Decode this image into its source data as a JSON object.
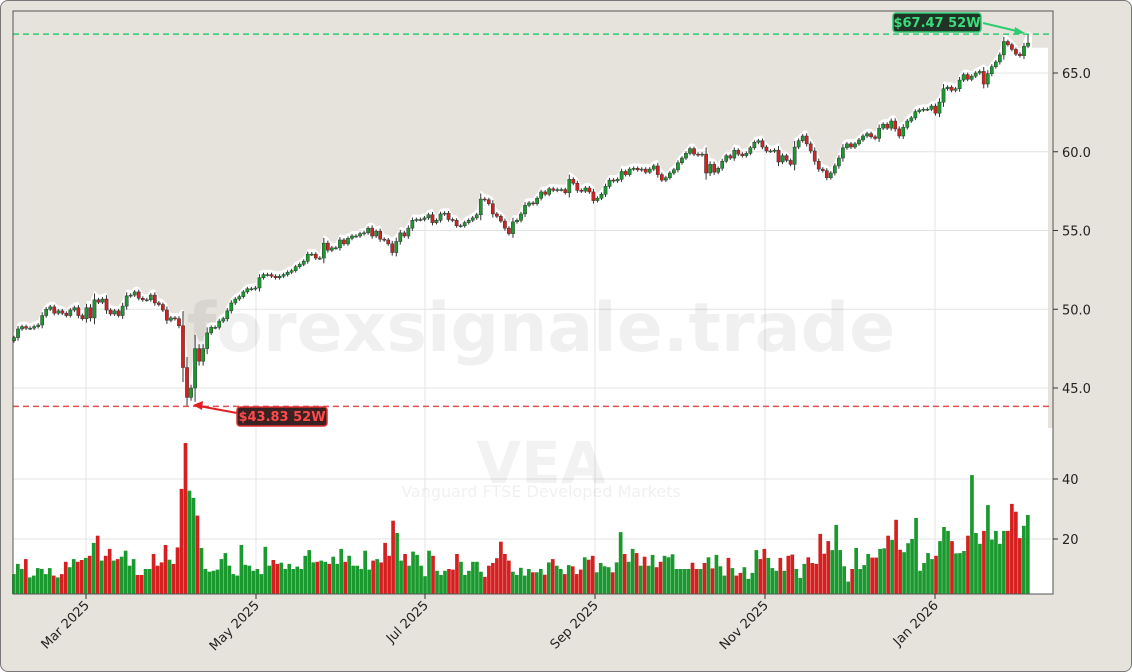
{
  "chart_data": {
    "type": "candlestick",
    "ticker": "VEA",
    "subtitle": "Vanguard FTSE Developed Markets",
    "watermark": "forexsignale.trade",
    "x_tick_labels": [
      "Mar 2025",
      "May 2025",
      "Jul 2025",
      "Sep 2025",
      "Nov 2025",
      "Jan 2026"
    ],
    "price_ticks": [
      45.0,
      50.0,
      55.0,
      60.0,
      65.0
    ],
    "price_ylim": [
      41.6,
      69.6
    ],
    "volume_ticks": [
      20,
      40
    ],
    "volume_unit": "M",
    "high_52w": {
      "value": 67.47,
      "label": "$67.47 52W"
    },
    "low_52w": {
      "value": 43.83,
      "label": "$43.83 52W"
    },
    "grid": true,
    "colors": {
      "up": "#1a9a2e",
      "down": "#d62020",
      "high_line": "#2ecc71",
      "low_line": "#e05050",
      "background": "#e6e3dd",
      "panel": "#ffffff"
    },
    "closes": [
      48.2,
      48.75,
      48.9,
      48.8,
      48.8,
      48.9,
      49.0,
      49.6,
      50.0,
      50.15,
      49.75,
      49.9,
      49.75,
      49.6,
      49.95,
      50.1,
      49.6,
      49.4,
      50.1,
      49.45,
      50.6,
      50.45,
      50.65,
      49.95,
      49.7,
      49.9,
      49.6,
      50.2,
      50.85,
      50.9,
      51.1,
      50.7,
      50.6,
      50.6,
      50.9,
      50.4,
      50.3,
      49.95,
      49.3,
      49.45,
      49.4,
      48.95,
      46.3,
      44.4,
      45.0,
      47.5,
      46.7,
      47.5,
      48.5,
      48.85,
      48.85,
      49.25,
      49.4,
      49.9,
      50.4,
      50.65,
      50.8,
      51.1,
      51.3,
      51.3,
      51.35,
      52.0,
      52.2,
      52.2,
      52.1,
      52.0,
      52.1,
      52.2,
      52.35,
      52.45,
      52.7,
      52.85,
      53.05,
      53.5,
      53.5,
      53.25,
      53.25,
      54.2,
      53.75,
      53.9,
      53.9,
      54.4,
      54.15,
      54.5,
      54.65,
      54.65,
      54.8,
      54.85,
      55.15,
      54.65,
      54.95,
      54.45,
      54.4,
      54.15,
      53.6,
      54.3,
      54.85,
      54.65,
      55.15,
      55.65,
      55.7,
      55.7,
      55.8,
      56.0,
      55.5,
      55.65,
      56.05,
      56.1,
      55.7,
      55.65,
      55.3,
      55.3,
      55.5,
      55.65,
      55.8,
      56.0,
      57.0,
      56.95,
      56.7,
      56.05,
      55.9,
      55.6,
      55.15,
      54.8,
      55.55,
      55.65,
      56.05,
      56.6,
      56.75,
      56.7,
      57.05,
      57.45,
      57.3,
      57.65,
      57.55,
      57.6,
      57.6,
      57.4,
      58.25,
      58.0,
      57.55,
      57.5,
      57.7,
      57.45,
      56.9,
      57.05,
      57.3,
      57.8,
      58.2,
      58.15,
      58.25,
      58.75,
      58.55,
      58.9,
      58.95,
      58.85,
      58.9,
      58.7,
      58.9,
      59.1,
      58.55,
      58.2,
      58.35,
      58.65,
      58.85,
      59.3,
      59.6,
      59.9,
      60.2,
      59.85,
      59.8,
      59.85,
      58.65,
      59.2,
      58.7,
      58.95,
      59.4,
      59.75,
      59.6,
      60.1,
      59.85,
      59.75,
      59.9,
      60.25,
      60.6,
      60.7,
      60.3,
      60.05,
      60.05,
      60.1,
      59.35,
      59.75,
      59.45,
      59.2,
      60.3,
      60.7,
      61.0,
      60.5,
      60.05,
      59.4,
      58.9,
      58.8,
      58.35,
      58.65,
      59.1,
      59.6,
      60.25,
      60.5,
      60.3,
      60.5,
      60.75,
      61.0,
      61.15,
      60.95,
      60.85,
      61.5,
      61.75,
      61.5,
      61.95,
      61.45,
      61.0,
      61.55,
      61.95,
      62.15,
      62.55,
      62.65,
      62.7,
      62.7,
      62.9,
      62.45,
      63.15,
      64.0,
      64.1,
      63.9,
      64.0,
      64.55,
      64.9,
      64.6,
      64.8,
      65.0,
      65.1,
      64.3,
      64.95,
      65.4,
      65.7,
      66.15,
      67.0,
      66.8,
      66.5,
      66.2,
      66.1,
      66.7,
      66.9
    ],
    "volumes": [
      8.3,
      11.7,
      10,
      13.3,
      7.2,
      7.8,
      10.3,
      10,
      8.3,
      10.3,
      7.8,
      7.2,
      8.3,
      12.4,
      10.6,
      13.3,
      12.4,
      13,
      13.7,
      14.4,
      18.7,
      21.1,
      12.8,
      14.4,
      16.7,
      12.8,
      13.3,
      14.1,
      16.1,
      11.1,
      13.3,
      8,
      8,
      10,
      10,
      15,
      11.1,
      12.2,
      18,
      13.1,
      11.7,
      17.2,
      36.7,
      52,
      36.1,
      33.7,
      27.8,
      17,
      10,
      9.1,
      9.4,
      9.8,
      13.3,
      15.3,
      11.1,
      8.3,
      7.8,
      18,
      11.4,
      11.1,
      9.4,
      10,
      8.3,
      17.4,
      11.1,
      13,
      11.7,
      12.1,
      10,
      11.7,
      10,
      10.8,
      10,
      14.4,
      16.3,
      12.2,
      12.4,
      12.8,
      12.4,
      11.7,
      14.1,
      11.7,
      16.7,
      12.4,
      14.4,
      11.1,
      11.1,
      10,
      16.1,
      9.8,
      12.8,
      13.3,
      12.2,
      18.7,
      14.4,
      26.1,
      22,
      12.8,
      15,
      11.1,
      15.8,
      14.7,
      11.1,
      7.6,
      16.1,
      14.4,
      9.4,
      8,
      9.4,
      10,
      9.8,
      15,
      12.4,
      8,
      9.4,
      12.4,
      12.4,
      9.1,
      7.4,
      11.1,
      12,
      13.6,
      19.1,
      15,
      12.8,
      9.1,
      8,
      10.4,
      7.8,
      10,
      8.9,
      8.9,
      10,
      8.1,
      12.2,
      13.3,
      11.1,
      10,
      8.3,
      11.3,
      10.9,
      8.3,
      9.8,
      13.9,
      13.1,
      14.4,
      8.9,
      12,
      10.9,
      10.6,
      8.9,
      12.2,
      22.3,
      15,
      12.4,
      16.7,
      15.3,
      11.1,
      14.1,
      11.1,
      14.7,
      10.6,
      12.4,
      14.4,
      13.9,
      14.9,
      10,
      10,
      10,
      10,
      12.1,
      10,
      10,
      12,
      13.9,
      10.2,
      14.7,
      10.9,
      7.8,
      13.7,
      10.3,
      7.8,
      8.7,
      10.6,
      6.7,
      8.7,
      16.3,
      13.3,
      16.7,
      13.7,
      10.3,
      9.4,
      13.7,
      9.4,
      14.4,
      14.8,
      10,
      7,
      11.7,
      13.9,
      12,
      11.7,
      21.7,
      15.1,
      19.3,
      16.3,
      24.7,
      16.3,
      10.9,
      5.8,
      10,
      17,
      10,
      11.3,
      15,
      13.8,
      13.8,
      16.7,
      16.9,
      21.1,
      19.7,
      26.4,
      16.4,
      15.6,
      18.6,
      20,
      27,
      9.4,
      12,
      15.3,
      13.3,
      14.4,
      19.3,
      24,
      22.7,
      19.3,
      15.2,
      15.3,
      16,
      21.1,
      41.3,
      22,
      18.4,
      22.7,
      31.3,
      19.8,
      22.7,
      18.4,
      22.7,
      22.7,
      31.7,
      29.1,
      20.3,
      24.4,
      28
    ]
  }
}
